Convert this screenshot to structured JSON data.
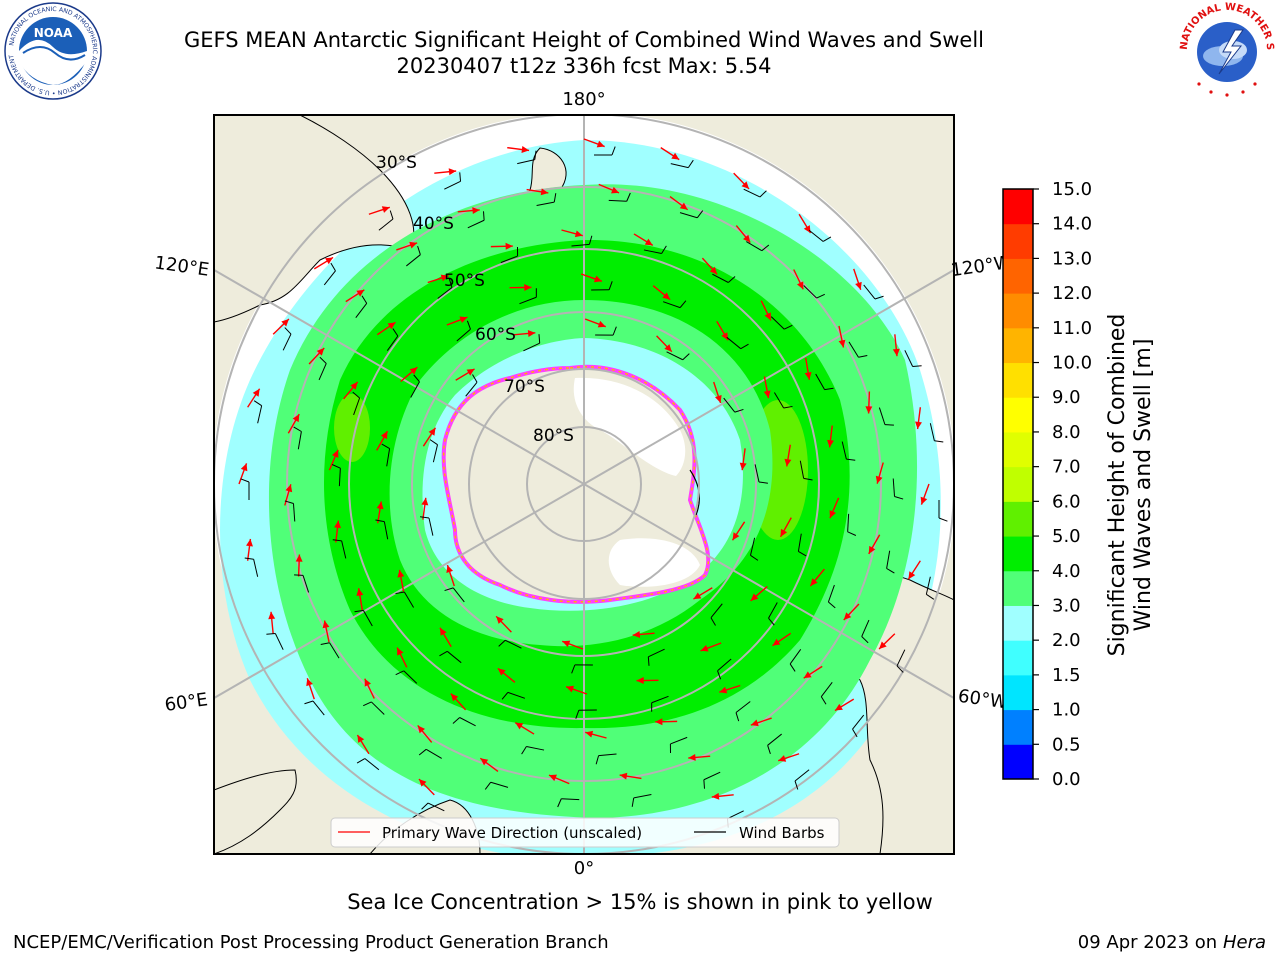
{
  "header": {
    "title": "GEFS MEAN Antarctic Significant Height of Combined Wind Waves and Swell",
    "subtitle": "20230407 t12z 336h fcst   Max: 5.54"
  },
  "logos": {
    "noaa_text": "NOAA",
    "noaa_ring": "NATIONAL OCEANIC AND ATMOSPHERIC ADMINISTRATION • U.S. DEPARTMENT OF COMMERCE",
    "nws_ring": "NATIONAL WEATHER SERVICE"
  },
  "map": {
    "projection": "south-polar-stereographic",
    "longitude_labels": {
      "top": "180°",
      "upper_left": "120°E",
      "upper_right": "120°W",
      "lower_left": "60°E",
      "lower_right": "60°W",
      "bottom": "0°"
    },
    "latitude_labels": [
      "30°S",
      "40°S",
      "50°S",
      "60°S",
      "70°S",
      "80°S"
    ],
    "legend": {
      "wave_direction": "Primary Wave Direction (unscaled)",
      "wind_barbs": "Wind Barbs"
    },
    "colors": {
      "land": "#eeecdc",
      "ice": "#ffffff",
      "arrow": "#ff0000",
      "barb": "#000000",
      "grid": "#b4b4b4"
    }
  },
  "colorbar": {
    "label_line1": "Significant Height of Combined",
    "label_line2": "Wind Waves and Swell [m]",
    "ticks": [
      "0.0",
      "0.5",
      "1.0",
      "1.5",
      "2.0",
      "3.0",
      "4.0",
      "5.0",
      "6.0",
      "7.0",
      "8.0",
      "9.0",
      "10.0",
      "11.0",
      "12.0",
      "13.0",
      "14.0",
      "15.0"
    ],
    "colors": [
      "#0000ff",
      "#0080ff",
      "#00e5ff",
      "#40ffff",
      "#a0ffff",
      "#50ff78",
      "#00ee00",
      "#60f000",
      "#c0ff00",
      "#e0ff00",
      "#ffff00",
      "#ffe000",
      "#ffb400",
      "#ff8c00",
      "#ff6400",
      "#ff3c00",
      "#ff0000"
    ]
  },
  "notes": {
    "sea_ice": "Sea Ice Concentration > 15% is shown in pink to yellow"
  },
  "footer": {
    "left": "NCEP/EMC/Verification Post Processing Product Generation Branch",
    "right_prefix": "09 Apr 2023 on ",
    "right_machine": "Hera"
  }
}
